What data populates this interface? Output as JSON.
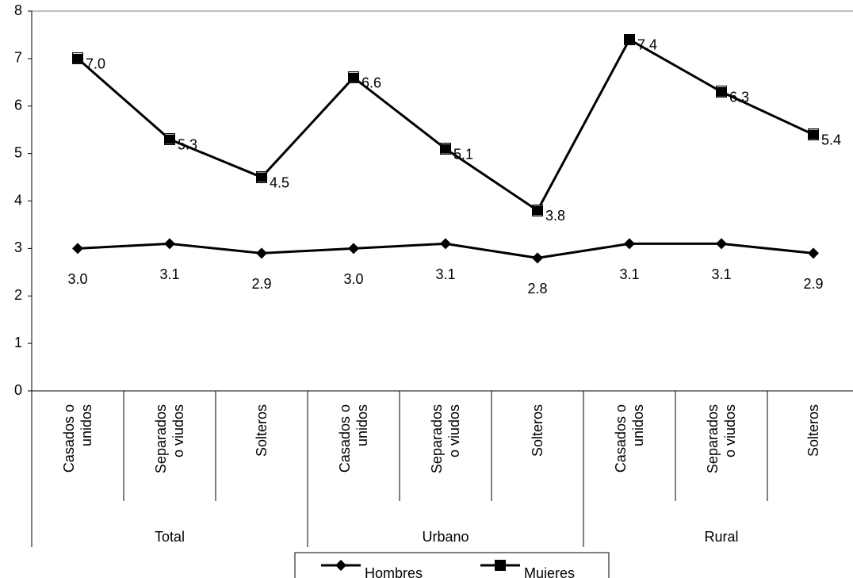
{
  "chart_data": {
    "type": "line",
    "categories": [
      "Casados o unidos",
      "Separados o viudos",
      "Solteros",
      "Casados o unidos",
      "Separados o viudos",
      "Solteros",
      "Casados o unidos",
      "Separados o viudos",
      "Solteros"
    ],
    "groups": [
      "Total",
      "Urbano",
      "Rural"
    ],
    "series": [
      {
        "name": "Hombres",
        "color": "#000000",
        "marker": "diamond",
        "values": [
          3.0,
          3.1,
          2.9,
          3.0,
          3.1,
          2.8,
          3.1,
          3.1,
          2.9
        ],
        "value_labels": [
          "3.0",
          "3.1",
          "2.9",
          "3.0",
          "3.1",
          "2.8",
          "3.1",
          "3.1",
          "2.9"
        ]
      },
      {
        "name": "Mujeres",
        "color": "#000000",
        "marker": "square",
        "values": [
          7.0,
          5.3,
          4.5,
          6.6,
          5.1,
          3.8,
          7.4,
          6.3,
          5.4
        ],
        "value_labels": [
          "7.0",
          "5.3",
          "4.5",
          "6.6",
          "5.1",
          "3.8",
          "7.4",
          "6.3",
          "5.4"
        ]
      }
    ],
    "ylim": [
      0,
      8
    ],
    "yticks": [
      0,
      1,
      2,
      3,
      4,
      5,
      6,
      7,
      8
    ],
    "grid": false,
    "legend": "bottom"
  }
}
